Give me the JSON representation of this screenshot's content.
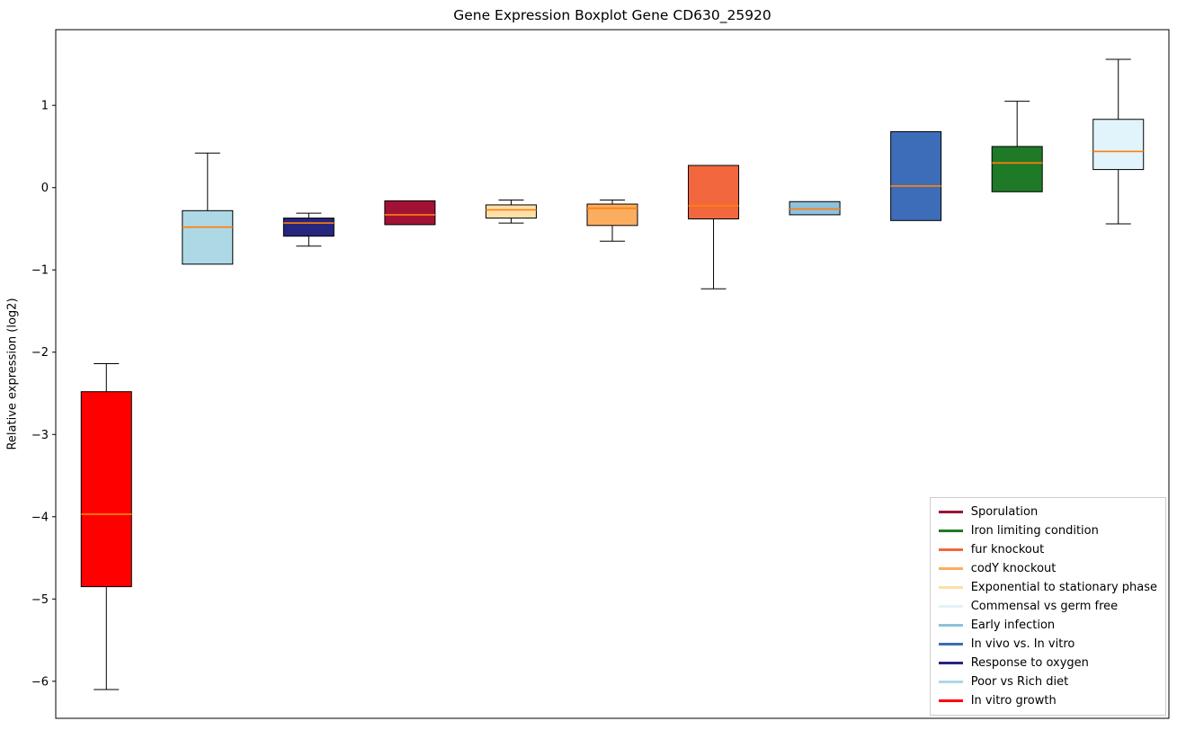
{
  "chart_data": {
    "type": "boxplot",
    "title": "Gene Expression Boxplot Gene CD630_25920",
    "ylabel": "Relative expression (log2)",
    "ylim": [
      -6.45,
      1.92
    ],
    "yticks": [
      1,
      0,
      -1,
      -2,
      -3,
      -4,
      -5,
      -6
    ],
    "grid": false,
    "legend_position": "lower right",
    "median_color": "#ff7f0e",
    "series": [
      {
        "name": "In vitro growth",
        "color": "#ff0000",
        "whisker_low": -6.1,
        "q1": -4.85,
        "median": -3.97,
        "q3": -2.48,
        "whisker_high": -2.14
      },
      {
        "name": "Poor vs Rich diet",
        "color": "#add8e6",
        "whisker_low": -0.93,
        "q1": -0.93,
        "median": -0.48,
        "q3": -0.28,
        "whisker_high": 0.42
      },
      {
        "name": "Response to oxygen",
        "color": "#26267e",
        "whisker_low": -0.71,
        "q1": -0.59,
        "median": -0.43,
        "q3": -0.37,
        "whisker_high": -0.31
      },
      {
        "name": "Sporulation",
        "color": "#a11235",
        "whisker_low": -0.45,
        "q1": -0.45,
        "median": -0.33,
        "q3": -0.16,
        "whisker_high": -0.16
      },
      {
        "name": "Exponential to stationary phase",
        "color": "#fde0a8",
        "whisker_low": -0.43,
        "q1": -0.37,
        "median": -0.27,
        "q3": -0.21,
        "whisker_high": -0.15
      },
      {
        "name": "codY knockout",
        "color": "#fcae60",
        "whisker_low": -0.65,
        "q1": -0.46,
        "median": -0.25,
        "q3": -0.2,
        "whisker_high": -0.15
      },
      {
        "name": "fur knockout",
        "color": "#f2673e",
        "whisker_low": -1.23,
        "q1": -0.38,
        "median": -0.22,
        "q3": 0.27,
        "whisker_high": 0.27
      },
      {
        "name": "Early infection",
        "color": "#8ec1dd",
        "whisker_low": -0.33,
        "q1": -0.33,
        "median": -0.26,
        "q3": -0.17,
        "whisker_high": -0.17
      },
      {
        "name": "In vivo vs. In vitro",
        "color": "#3d6db8",
        "whisker_low": -0.4,
        "q1": -0.4,
        "median": 0.02,
        "q3": 0.68,
        "whisker_high": 0.68
      },
      {
        "name": "Iron limiting condition",
        "color": "#1f7a28",
        "whisker_low": -0.05,
        "q1": -0.05,
        "median": 0.3,
        "q3": 0.5,
        "whisker_high": 1.05
      },
      {
        "name": "Commensal vs germ free",
        "color": "#e1f3fb",
        "whisker_low": -0.44,
        "q1": 0.22,
        "median": 0.44,
        "q3": 0.83,
        "whisker_high": 1.56
      }
    ],
    "legend": [
      {
        "label": "Sporulation",
        "color": "#a11235"
      },
      {
        "label": "Iron limiting condition",
        "color": "#1f7a28"
      },
      {
        "label": "fur knockout",
        "color": "#f2673e"
      },
      {
        "label": "codY knockout",
        "color": "#fcae60"
      },
      {
        "label": "Exponential to stationary phase",
        "color": "#fde0a8"
      },
      {
        "label": "Commensal vs germ free",
        "color": "#e1f3fb"
      },
      {
        "label": "Early infection",
        "color": "#8ec1dd"
      },
      {
        "label": "In vivo vs. In vitro",
        "color": "#3d6db8"
      },
      {
        "label": "Response to oxygen",
        "color": "#26267e"
      },
      {
        "label": "Poor vs Rich diet",
        "color": "#add8e6"
      },
      {
        "label": "In vitro growth",
        "color": "#ff0000"
      }
    ]
  }
}
